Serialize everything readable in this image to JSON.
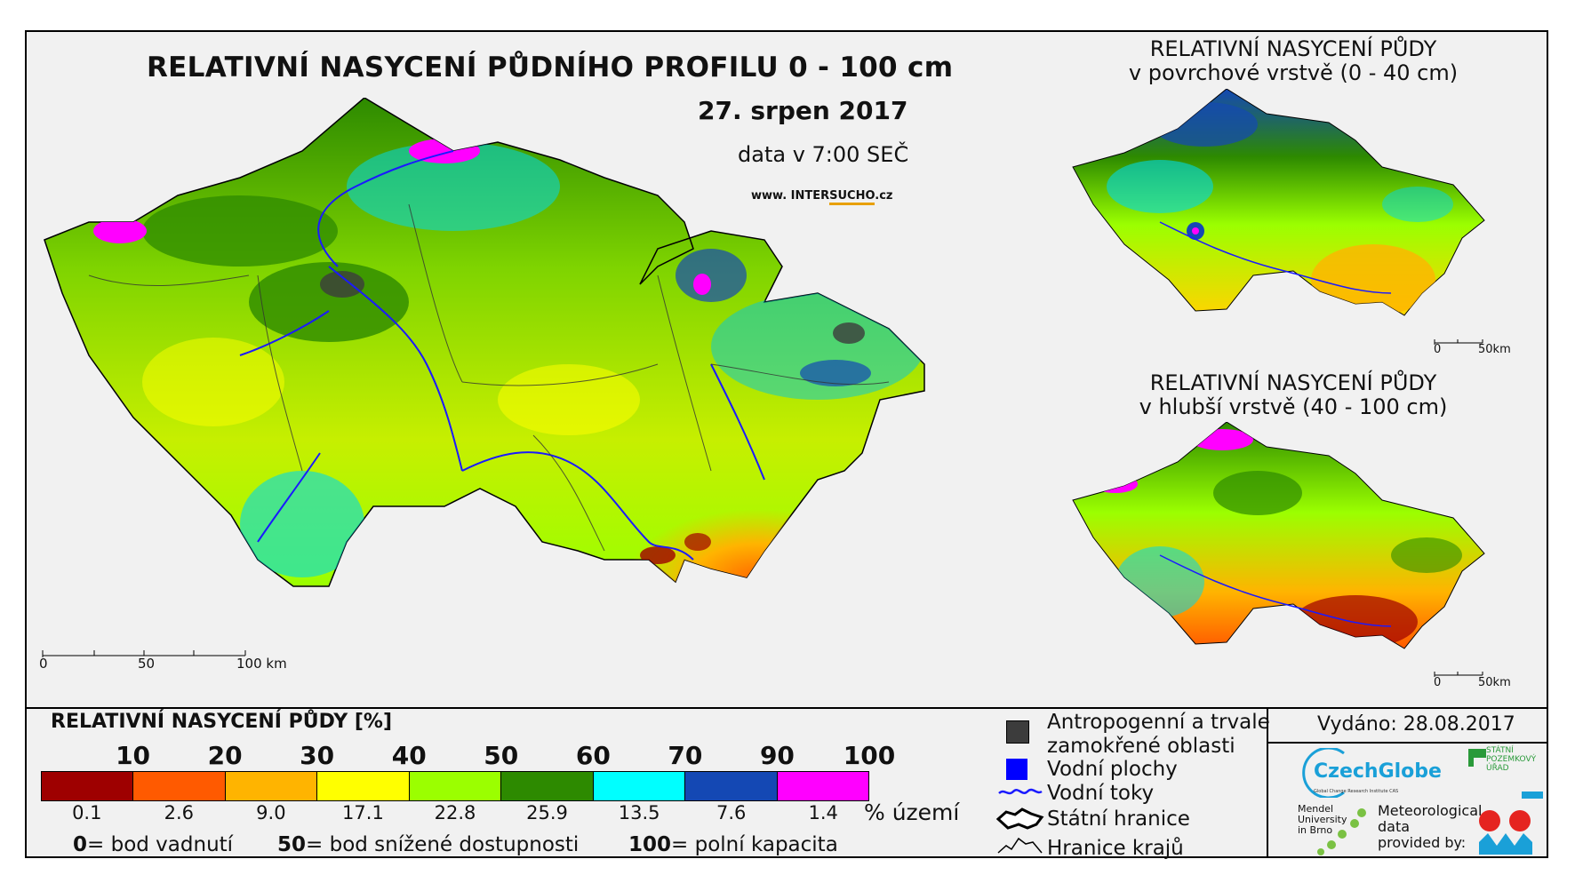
{
  "main_map": {
    "title": "RELATIVNÍ NASYCENÍ PŮDNÍHO PROFILU 0 - 100 cm",
    "date": "27. srpen 2017",
    "time": "data v 7:00 SEČ",
    "website_prefix": "www. INTER",
    "website_highlight": "SUCHO",
    "website_suffix": ".cz",
    "scale_labels": [
      "0",
      "50",
      "100 km"
    ]
  },
  "inset_top": {
    "title_line1": "RELATIVNÍ NASYCENÍ PŮDY",
    "title_line2": "v povrchové vrstvě (0 - 40 cm)",
    "scale_labels": [
      "0",
      "50km"
    ]
  },
  "inset_bottom": {
    "title_line1": "RELATIVNÍ NASYCENÍ PŮDY",
    "title_line2": "v hlubší vrstvě (40 - 100 cm)",
    "scale_labels": [
      "0",
      "50km"
    ]
  },
  "legend": {
    "title": "RELATIVNÍ NASYCENÍ PŮDY [%]",
    "ticks": [
      "10",
      "20",
      "30",
      "40",
      "50",
      "60",
      "70",
      "90",
      "100"
    ],
    "classes": [
      {
        "color": "#9e0000",
        "area_pct": "0.1"
      },
      {
        "color": "#ff5a00",
        "area_pct": "2.6"
      },
      {
        "color": "#ffb400",
        "area_pct": "9.0"
      },
      {
        "color": "#ffff00",
        "area_pct": "17.1"
      },
      {
        "color": "#9bff00",
        "area_pct": "22.8"
      },
      {
        "color": "#2d8a00",
        "area_pct": "25.9"
      },
      {
        "color": "#00ffff",
        "area_pct": "13.5"
      },
      {
        "color": "#1448b4",
        "area_pct": "7.6"
      },
      {
        "color": "#ff00ff",
        "area_pct": "1.4"
      }
    ],
    "unit": "% území",
    "notes": [
      {
        "value": "0",
        "text": "= bod vadnutí"
      },
      {
        "value": "50",
        "text": "= bod snížené dostupnosti"
      },
      {
        "value": "100",
        "text": "= polní kapacita"
      }
    ]
  },
  "overlay_legend": {
    "anthropogenic": "Antropogenní a trvale zamokřené oblasti",
    "anthropogenic_line1": "Antropogenní a trvale",
    "anthropogenic_line2": "zamokřené oblasti",
    "water_bodies": "Vodní plochy",
    "rivers": "Vodní toky",
    "state_border": "Státní hranice",
    "region_border": "Hranice krajů"
  },
  "issued": "Vydáno: 28.08.2017",
  "logos": {
    "czechglobe": "CzechGlobe",
    "czechglobe_sub": "Global Change Research Institute CAS",
    "spu_line1": "STÁTNÍ",
    "spu_line2": "POZEMKOVÝ",
    "spu_line3": "ÚŘAD",
    "mendel_line1": "Mendel",
    "mendel_line2": "University",
    "mendel_line3": "in Brno",
    "meteo_line1": "Meteorological",
    "meteo_line2": "data",
    "meteo_line3": "provided by:"
  },
  "colors": {
    "anthropogenic": "#3c3c3c",
    "water": "#0000ff",
    "river": "#1a1aff"
  }
}
